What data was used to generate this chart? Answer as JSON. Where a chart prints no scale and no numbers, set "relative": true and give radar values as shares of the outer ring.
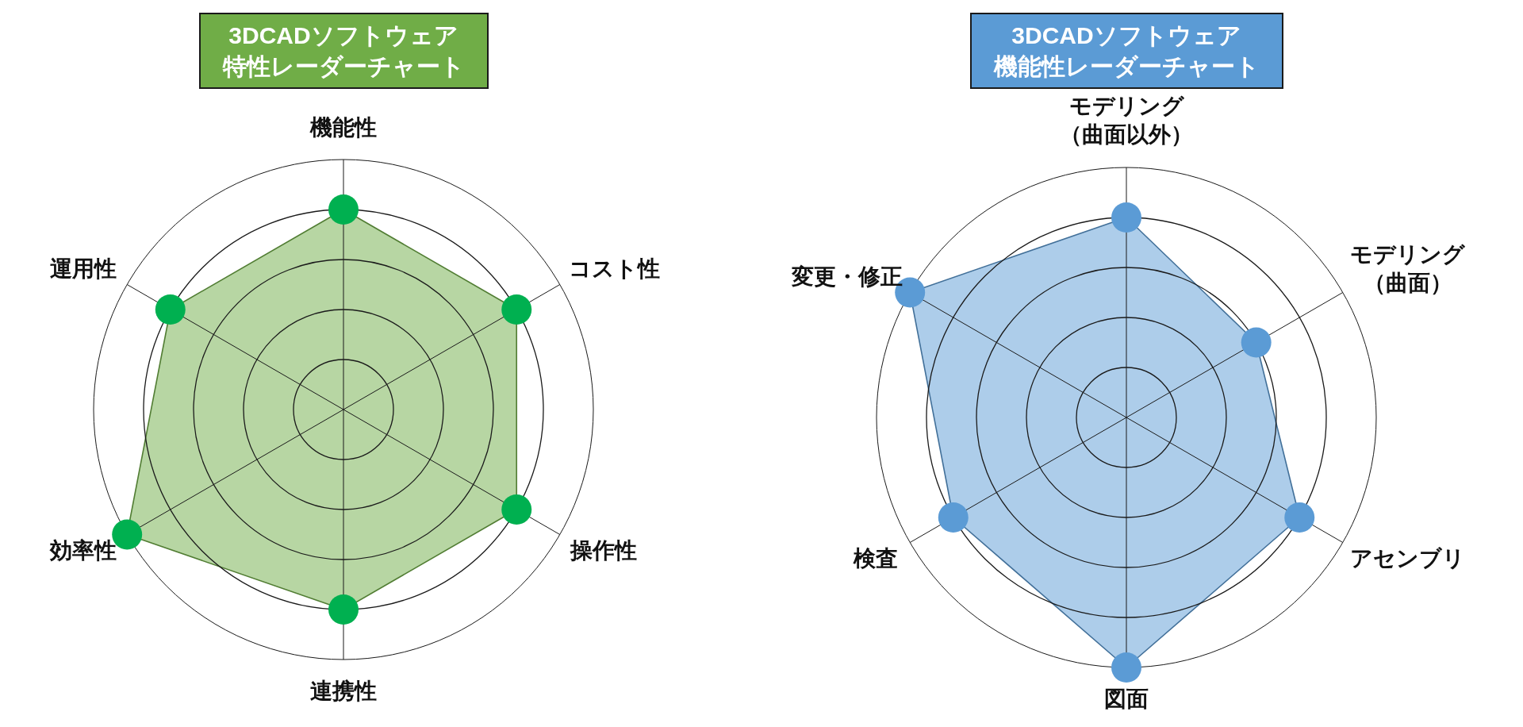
{
  "chart_data": [
    {
      "type": "radar",
      "title": "3DCADソフトウェア特性レーダーチャート",
      "categories": [
        "機能性",
        "コスト性",
        "操作性",
        "連携性",
        "効率性",
        "運用性"
      ],
      "relative": true,
      "grid": true,
      "marker": "circle",
      "series": [
        {
          "color": "#70ad47",
          "colors": [
            "#00b050",
            "#00b050",
            "#00b050",
            "#00b050",
            "#00b050",
            "#00b050"
          ],
          "values": [
            0.8,
            0.8,
            0.8,
            0.8,
            1,
            0.8
          ]
        }
      ]
    },
    {
      "type": "radar",
      "title": "3DCADソフトウェア機能性レーダーチャート",
      "categories": [
        "モデリング（曲面以外）",
        "モデリング（曲面）",
        "アセンブリ",
        "図面",
        "検査",
        "変更・修正"
      ],
      "relative": true,
      "grid": true,
      "marker": "circle",
      "series": [
        {
          "color": "#5b9bd5",
          "values": [
            0.8,
            0.6,
            0.8,
            1,
            0.8,
            1
          ]
        }
      ]
    }
  ]
}
